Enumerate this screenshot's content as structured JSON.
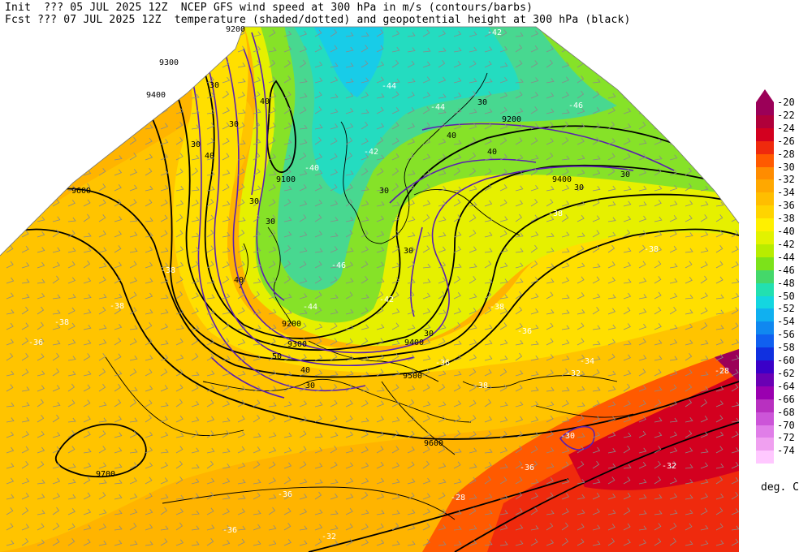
{
  "header": {
    "line1": "Init  ??? 05 JUL 2025 12Z  NCEP GFS wind speed at 300 hPa in m/s (contours/barbs)",
    "line2": "Fcst ??? 07 JUL 2025 12Z  temperature (shaded/dotted) and geopotential height at 300 hPa (black)"
  },
  "colorbar": {
    "units": "deg. C",
    "levels": [
      "-20",
      "-22",
      "-24",
      "-26",
      "-28",
      "-30",
      "-32",
      "-34",
      "-36",
      "-38",
      "-40",
      "-42",
      "-44",
      "-46",
      "-48",
      "-50",
      "-52",
      "-54",
      "-56",
      "-58",
      "-60",
      "-62",
      "-64",
      "-66",
      "-68",
      "-70",
      "-72",
      "-74"
    ],
    "colors": [
      "#9b0058",
      "#b0003a",
      "#d3001f",
      "#ef2a0d",
      "#ff5a00",
      "#ff8c00",
      "#ffa800",
      "#ffbe00",
      "#ffd400",
      "#fff000",
      "#e2f200",
      "#b8ec00",
      "#7ce21a",
      "#44d86a",
      "#22e0b0",
      "#14d6e0",
      "#10b0f0",
      "#1088f0",
      "#1060f0",
      "#1030e0",
      "#3a00c8",
      "#6a00b4",
      "#9a00b0",
      "#b830c0",
      "#cc55d8",
      "#e07ee8",
      "#f0a0f0",
      "#ffc8ff"
    ]
  },
  "map": {
    "height_labels": [
      "9200",
      "9300",
      "9400",
      "9100",
      "9600",
      "9200",
      "9300",
      "9400",
      "9500",
      "9600",
      "9700",
      "9200",
      "9400"
    ],
    "wind_labels": [
      "30",
      "30",
      "40",
      "30",
      "40",
      "30",
      "30",
      "30",
      "40",
      "30",
      "40",
      "30",
      "30",
      "30",
      "40",
      "50",
      "40",
      "30",
      "30"
    ],
    "temp_labels": [
      "-44",
      "-44",
      "-42",
      "-40",
      "-42",
      "-46",
      "-42",
      "-44",
      "-46",
      "-38",
      "-38",
      "-38",
      "-38",
      "-38",
      "-38",
      "-36",
      "-38",
      "-36",
      "-34",
      "-32",
      "-36",
      "-28",
      "-30",
      "-28",
      "-36",
      "-32",
      "-38",
      "-36",
      "-36",
      "-32"
    ]
  }
}
